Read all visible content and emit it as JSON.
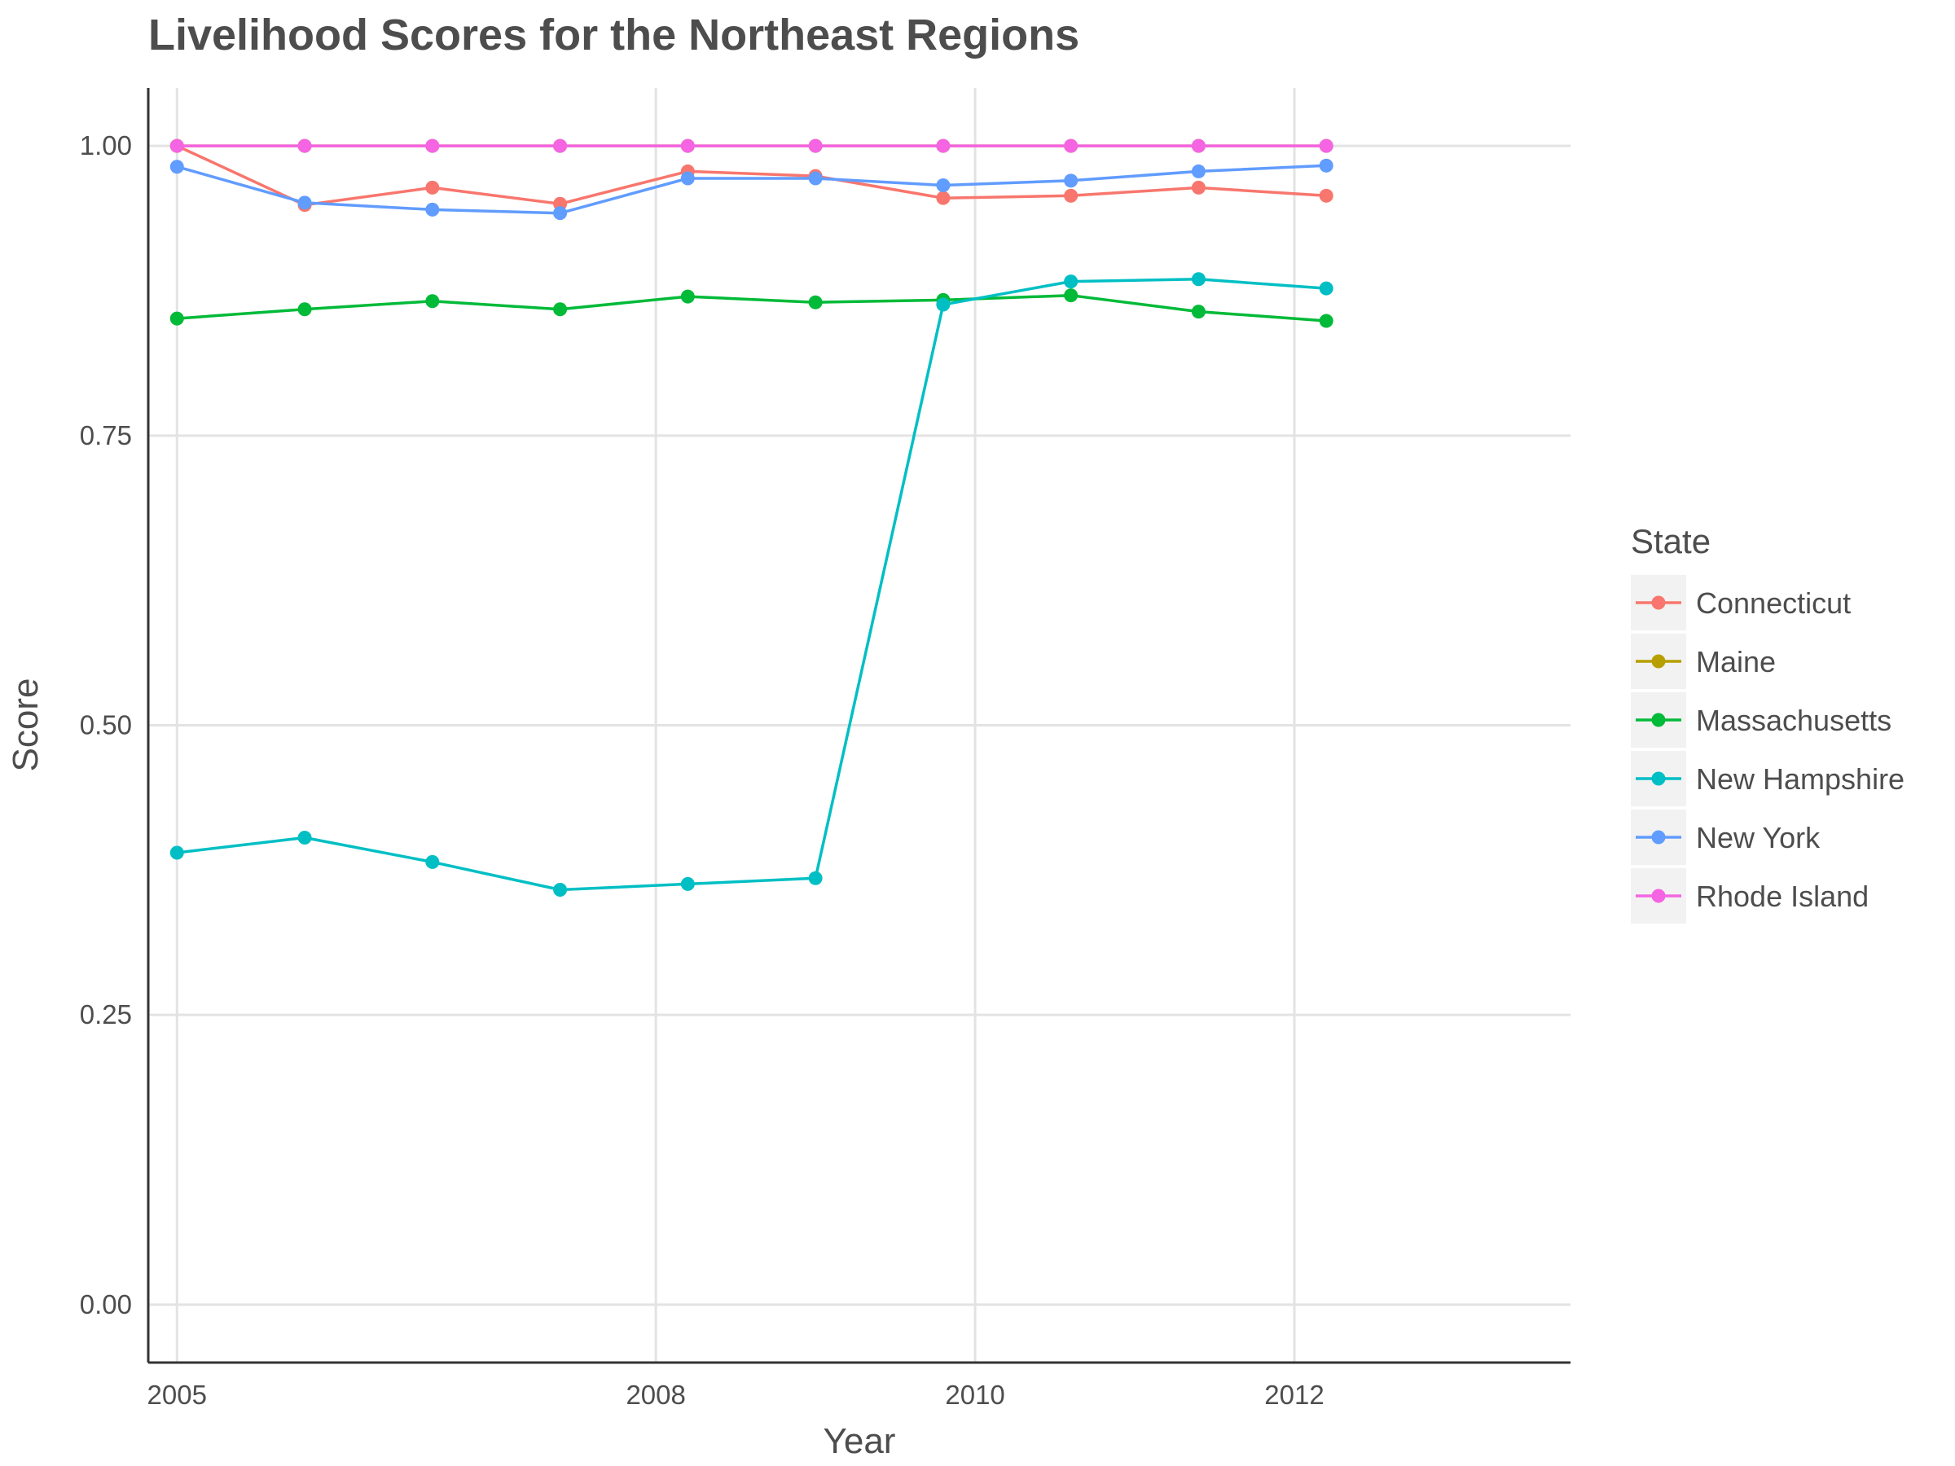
{
  "chart_data": {
    "type": "line",
    "title": "Livelihood Scores for the Northeast Regions",
    "xlabel": "Year",
    "ylabel": "Score",
    "xlim": [
      2004.82,
      2013.73
    ],
    "ylim": [
      -0.05,
      1.05
    ],
    "x_ticks": [
      2005,
      2008,
      2010,
      2012
    ],
    "x_tick_labels": [
      "2005",
      "2008",
      "2010",
      "2012"
    ],
    "y_ticks": [
      0,
      0.25,
      0.5,
      0.75,
      1
    ],
    "y_tick_labels": [
      "0.00",
      "0.25",
      "0.50",
      "0.75",
      "1.00"
    ],
    "x": [
      2005.0,
      2005.8,
      2006.6,
      2007.4,
      2008.2,
      2009.0,
      2009.8,
      2010.6,
      2011.4,
      2012.2
    ],
    "grid": true,
    "legend": {
      "title": "State",
      "position": "right"
    },
    "series": [
      {
        "name": "Connecticut",
        "color": "#F8766D",
        "values": [
          1.0,
          0.949,
          0.964,
          0.95,
          0.978,
          0.974,
          0.955,
          0.957,
          0.964,
          0.957
        ]
      },
      {
        "name": "Maine",
        "color": "#B79F00",
        "values": [
          1.0,
          1.0,
          1.0,
          1.0,
          1.0,
          1.0,
          1.0,
          1.0,
          1.0,
          1.0
        ]
      },
      {
        "name": "Massachusetts",
        "color": "#00BA38",
        "values": [
          0.851,
          0.859,
          0.866,
          0.859,
          0.87,
          0.865,
          0.867,
          0.871,
          0.857,
          0.849
        ]
      },
      {
        "name": "New Hampshire",
        "color": "#00BFC4",
        "values": [
          0.39,
          0.403,
          0.382,
          0.358,
          0.363,
          0.368,
          0.863,
          0.883,
          0.885,
          0.877
        ]
      },
      {
        "name": "New York",
        "color": "#619CFF",
        "values": [
          0.982,
          0.951,
          0.945,
          0.942,
          0.972,
          0.972,
          0.966,
          0.97,
          0.978,
          0.983
        ]
      },
      {
        "name": "Rhode Island",
        "color": "#F564E3",
        "values": [
          1.0,
          1.0,
          1.0,
          1.0,
          1.0,
          1.0,
          1.0,
          1.0,
          1.0,
          1.0
        ]
      }
    ]
  }
}
